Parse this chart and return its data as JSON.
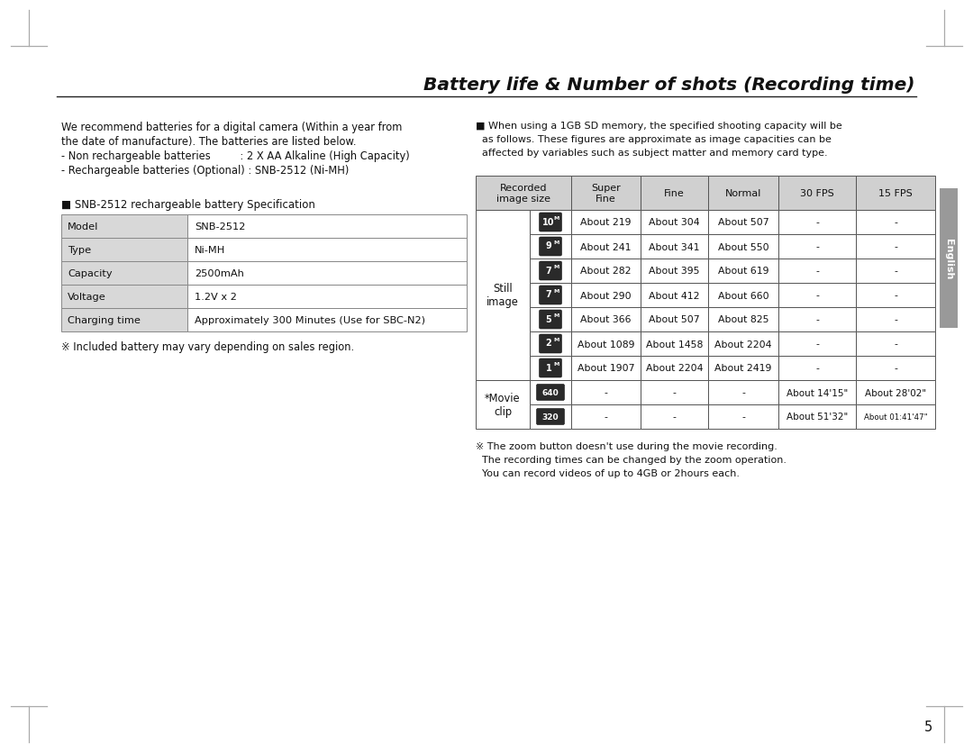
{
  "title": "Battery life & Number of shots (Recording time)",
  "bg_color": "#ffffff",
  "page_number": "5",
  "body_text_left": [
    "We recommend batteries for a digital camera (Within a year from",
    "the date of manufacture). The batteries are listed below.",
    "- Non rechargeable batteries         : 2 X AA Alkaline (High Capacity)",
    "- Rechargeable batteries (Optional) : SNB-2512 (Ni-MH)"
  ],
  "battery_spec_title": "■ SNB-2512 rechargeable battery Specification",
  "battery_spec_rows": [
    [
      "Model",
      "SNB-2512"
    ],
    [
      "Type",
      "Ni-MH"
    ],
    [
      "Capacity",
      "2500mAh"
    ],
    [
      "Voltage",
      "1.2V x 2"
    ],
    [
      "Charging time",
      "Approximately 300 Minutes (Use for SBC-N2)"
    ]
  ],
  "note_left": "※ Included battery may vary depending on sales region.",
  "right_intro": [
    "■ When using a 1GB SD memory, the specified shooting capacity will be",
    "  as follows. These figures are approximate as image capacities can be",
    "  affected by variables such as subject matter and memory card type."
  ],
  "still_rows": [
    {
      "icon": "10",
      "sup": "M",
      "super_fine": "About 219",
      "fine": "About 304",
      "normal": "About 507",
      "fps30": "-",
      "fps15": "-"
    },
    {
      "icon": "9",
      "sup": "M",
      "super_fine": "About 241",
      "fine": "About 341",
      "normal": "About 550",
      "fps30": "-",
      "fps15": "-"
    },
    {
      "icon": "7",
      "sup": "M",
      "super_fine": "About 282",
      "fine": "About 395",
      "normal": "About 619",
      "fps30": "-",
      "fps15": "-"
    },
    {
      "icon": "7",
      "sup": "M",
      "super_fine": "About 290",
      "fine": "About 412",
      "normal": "About 660",
      "fps30": "-",
      "fps15": "-"
    },
    {
      "icon": "5",
      "sup": "M",
      "super_fine": "About 366",
      "fine": "About 507",
      "normal": "About 825",
      "fps30": "-",
      "fps15": "-"
    },
    {
      "icon": "2",
      "sup": "M",
      "super_fine": "About 1089",
      "fine": "About 1458",
      "normal": "About 2204",
      "fps30": "-",
      "fps15": "-"
    },
    {
      "icon": "1",
      "sup": "M",
      "super_fine": "About 1907",
      "fine": "About 2204",
      "normal": "About 2419",
      "fps30": "-",
      "fps15": "-"
    }
  ],
  "movie_rows": [
    {
      "icon": "640",
      "sup": "",
      "super_fine": "-",
      "fine": "-",
      "normal": "-",
      "fps30": "About 14'15\"",
      "fps15": "About 28'02\""
    },
    {
      "icon": "320",
      "sup": "",
      "super_fine": "-",
      "fine": "-",
      "normal": "-",
      "fps30": "About 51'32\"",
      "fps15": "About 01:41'47\""
    }
  ],
  "note_right": [
    "※ The zoom button doesn't use during the movie recording.",
    "  The recording times can be changed by the zoom operation.",
    "  You can record videos of up to 4GB or 2hours each."
  ],
  "side_label": "English",
  "still_label": "Still\nimage",
  "movie_label": "*Movie\nclip",
  "corner_color": "#aaaaaa",
  "border_color": "#555555",
  "hdr_bg": "#d0d0d0",
  "spec_col1_bg": "#d8d8d8",
  "spec_col2_bg": "#ffffff",
  "icon_bg": "#2a2a2a",
  "icon_text": "#ffffff",
  "tab_bg": "#999999"
}
